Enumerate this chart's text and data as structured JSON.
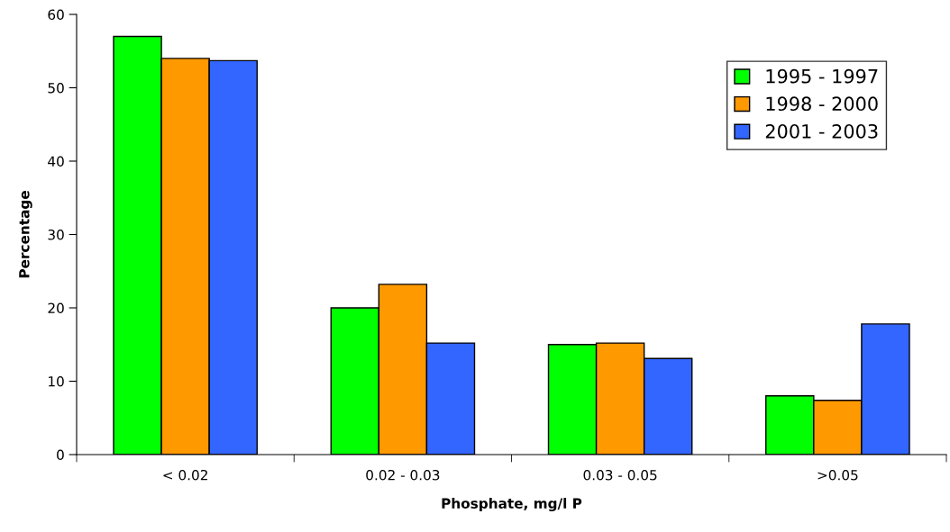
{
  "chart_data": {
    "type": "bar",
    "xlabel": "Phosphate, mg/l P",
    "ylabel": "Percentage",
    "categories": [
      "< 0.02",
      "0.02 - 0.03",
      "0.03 - 0.05",
      ">0.05"
    ],
    "series": [
      {
        "name": "1995 - 1997",
        "color": "#00ff00",
        "values": [
          57,
          20,
          15,
          8
        ]
      },
      {
        "name": "1998 - 2000",
        "color": "#ff9900",
        "values": [
          54,
          23.2,
          15.2,
          7.4
        ]
      },
      {
        "name": "2001 - 2003",
        "color": "#3366ff",
        "values": [
          53.7,
          15.2,
          13.1,
          17.8
        ]
      }
    ],
    "ylim": [
      0,
      60
    ],
    "yticks": [
      0,
      10,
      20,
      30,
      40,
      50,
      60
    ],
    "grid": false,
    "legend": "top right"
  }
}
